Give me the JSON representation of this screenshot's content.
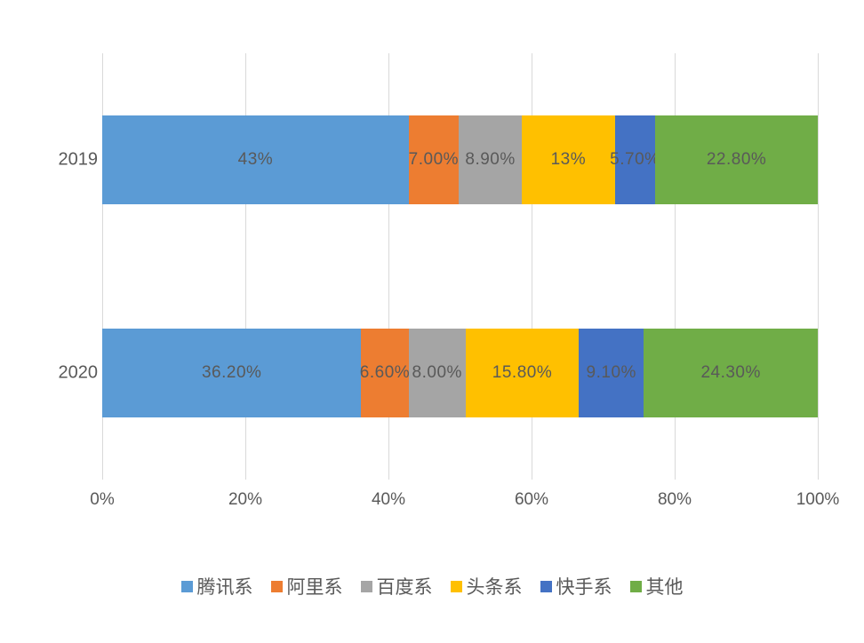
{
  "chart_data": {
    "type": "bar",
    "orientation": "horizontal",
    "stacked": true,
    "title": "",
    "xlabel": "",
    "ylabel": "",
    "xlim": [
      0,
      100
    ],
    "grid": true,
    "legend_position": "bottom",
    "categories": [
      "2019",
      "2020"
    ],
    "x_ticks": [
      "0%",
      "20%",
      "40%",
      "60%",
      "80%",
      "100%"
    ],
    "series": [
      {
        "name": "腾讯系",
        "color": "#5b9bd5",
        "values": [
          43.0,
          36.2
        ]
      },
      {
        "name": "阿里系",
        "color": "#ed7d31",
        "values": [
          7.0,
          6.6
        ]
      },
      {
        "name": "百度系",
        "color": "#a5a5a5",
        "values": [
          8.9,
          8.0
        ]
      },
      {
        "name": "头条系",
        "color": "#ffc000",
        "values": [
          13.0,
          15.8
        ]
      },
      {
        "name": "快手系",
        "color": "#4472c4",
        "values": [
          5.7,
          9.1
        ]
      },
      {
        "name": "其他",
        "color": "#70ad47",
        "values": [
          22.8,
          24.3
        ]
      }
    ],
    "data_labels": [
      [
        "43%",
        "7.00%",
        "8.90%",
        "13%",
        "5.70%",
        "22.80%"
      ],
      [
        "36.20%",
        "6.60%",
        "8.00%",
        "15.80%",
        "9.10%",
        "24.30%"
      ]
    ],
    "colors": {
      "gridline": "#d9d9d9",
      "text": "#595959",
      "background": "#ffffff"
    }
  }
}
